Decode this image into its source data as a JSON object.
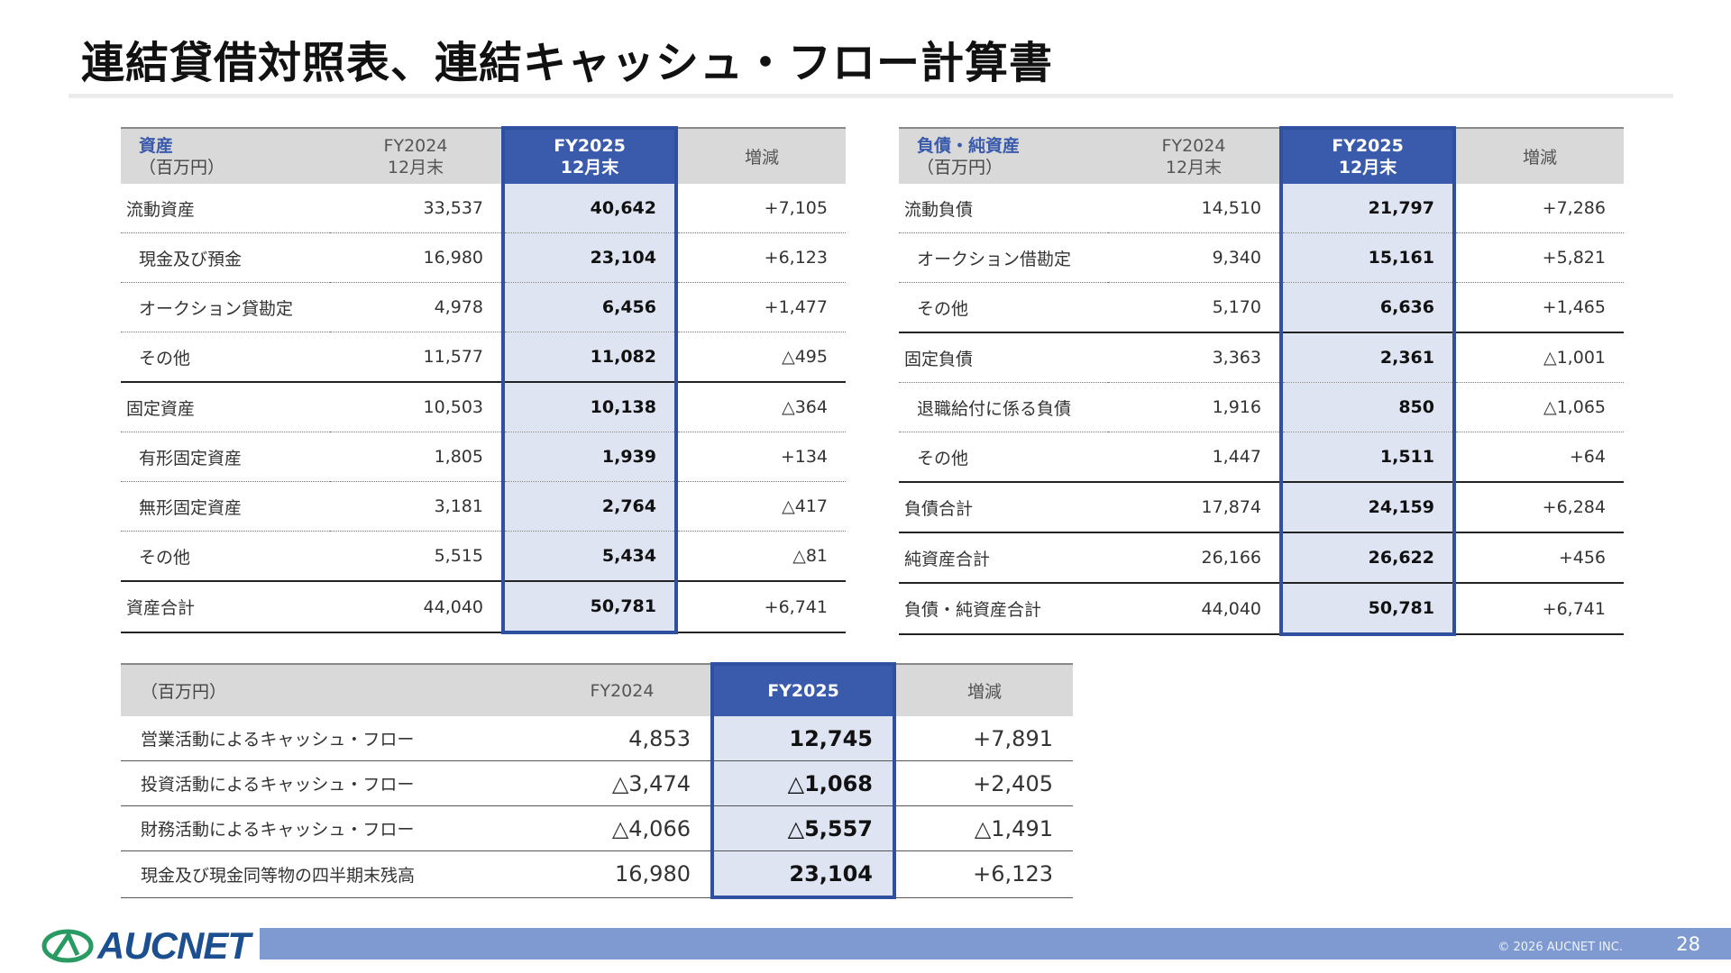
{
  "page": {
    "title": "連結貸借対照表、連結キャッシュ・フロー計算書",
    "copyright": "© 2026 AUCNET INC.",
    "page_number": "28",
    "logo_text": "AUCNET"
  },
  "assets": {
    "header": {
      "category": "資産",
      "unit": "（百万円）",
      "prev_fy": "FY2024",
      "prev_period": "12月末",
      "cur_fy": "FY2025",
      "cur_period": "12月末",
      "change": "増減"
    },
    "rows": [
      {
        "label": "流動資産",
        "prev": "33,537",
        "cur": "40,642",
        "change": "+7,105"
      },
      {
        "label": "現金及び預金",
        "prev": "16,980",
        "cur": "23,104",
        "change": "+6,123"
      },
      {
        "label": "オークション貸勘定",
        "prev": "4,978",
        "cur": "6,456",
        "change": "+1,477"
      },
      {
        "label": "その他",
        "prev": "11,577",
        "cur": "11,082",
        "change": "△495"
      },
      {
        "label": "固定資産",
        "prev": "10,503",
        "cur": "10,138",
        "change": "△364"
      },
      {
        "label": "有形固定資産",
        "prev": "1,805",
        "cur": "1,939",
        "change": "+134"
      },
      {
        "label": "無形固定資産",
        "prev": "3,181",
        "cur": "2,764",
        "change": "△417"
      },
      {
        "label": "その他",
        "prev": "5,515",
        "cur": "5,434",
        "change": "△81"
      },
      {
        "label": "資産合計",
        "prev": "44,040",
        "cur": "50,781",
        "change": "+6,741"
      }
    ]
  },
  "liabilities": {
    "header": {
      "category": "負債・純資産",
      "unit": "（百万円）",
      "prev_fy": "FY2024",
      "prev_period": "12月末",
      "cur_fy": "FY2025",
      "cur_period": "12月末",
      "change": "増減"
    },
    "rows": [
      {
        "label": "流動負債",
        "prev": "14,510",
        "cur": "21,797",
        "change": "+7,286"
      },
      {
        "label": "オークション借勘定",
        "prev": "9,340",
        "cur": "15,161",
        "change": "+5,821"
      },
      {
        "label": "その他",
        "prev": "5,170",
        "cur": "6,636",
        "change": "+1,465"
      },
      {
        "label": "固定負債",
        "prev": "3,363",
        "cur": "2,361",
        "change": "△1,001"
      },
      {
        "label": "退職給付に係る負債",
        "prev": "1,916",
        "cur": "850",
        "change": "△1,065"
      },
      {
        "label": "その他",
        "prev": "1,447",
        "cur": "1,511",
        "change": "+64"
      },
      {
        "label": "負債合計",
        "prev": "17,874",
        "cur": "24,159",
        "change": "+6,284"
      },
      {
        "label": "純資産合計",
        "prev": "26,166",
        "cur": "26,622",
        "change": "+456"
      },
      {
        "label": "負債・純資産合計",
        "prev": "44,040",
        "cur": "50,781",
        "change": "+6,741"
      }
    ]
  },
  "cashflow": {
    "header": {
      "unit": "（百万円）",
      "prev_fy": "FY2024",
      "cur_fy": "FY2025",
      "change": "増減"
    },
    "rows": [
      {
        "label": "営業活動によるキャッシュ・フロー",
        "prev": "4,853",
        "cur": "12,745",
        "change": "+7,891"
      },
      {
        "label": "投資活動によるキャッシュ・フロー",
        "prev": "△3,474",
        "cur": "△1,068",
        "change": "+2,405"
      },
      {
        "label": "財務活動によるキャッシュ・フロー",
        "prev": "△4,066",
        "cur": "△5,557",
        "change": "△1,491"
      },
      {
        "label": "現金及び現金同等物の四半期末残高",
        "prev": "16,980",
        "cur": "23,104",
        "change": "+6,123"
      }
    ]
  },
  "colors": {
    "accent": "#3a5bab",
    "highlight_fill": "#dee4f1",
    "header_fill": "#d9d9d9",
    "footer_bar": "#7f9ad0",
    "logo": "#1b4f8f"
  }
}
